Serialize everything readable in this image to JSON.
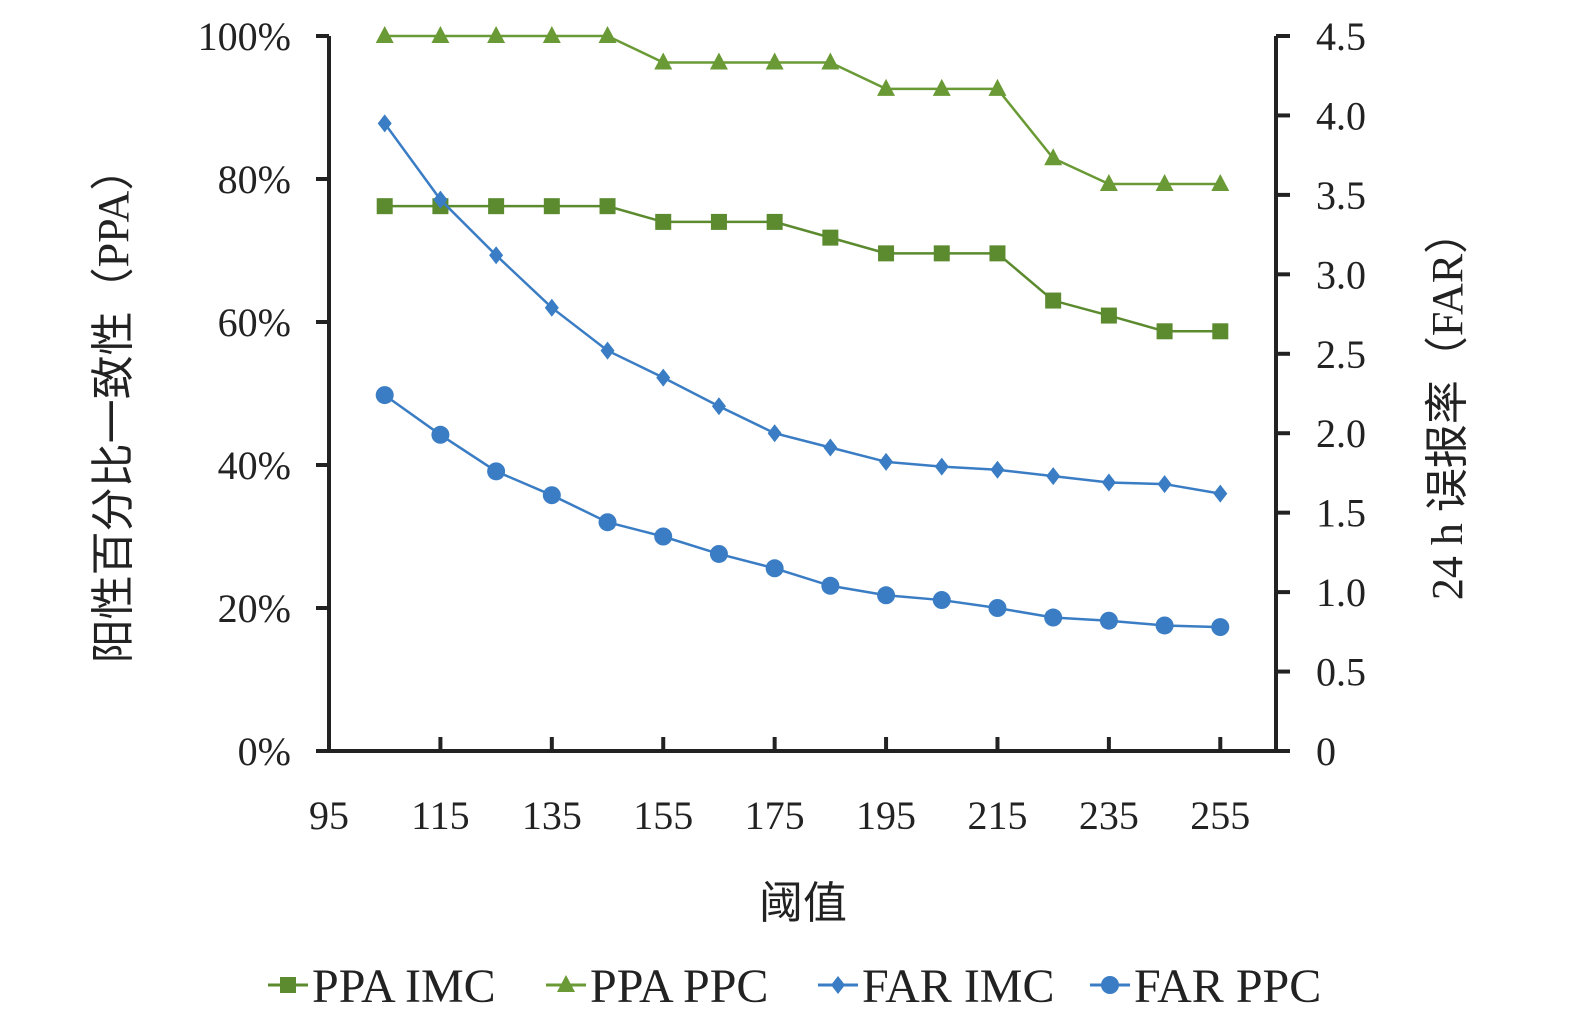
{
  "chart_data": {
    "type": "line",
    "xlabel": "阈值",
    "ylabel_left": "阳性百分比一致性（PPA）",
    "ylabel_right": "24 h 误报率（FAR）",
    "x_ticks": [
      95,
      115,
      135,
      155,
      175,
      195,
      215,
      235,
      255
    ],
    "x_range": [
      95,
      265
    ],
    "y_left_range": [
      0,
      100
    ],
    "y_left_ticks": [
      0,
      20,
      40,
      60,
      80,
      100
    ],
    "y_left_tick_labels": [
      "0%",
      "20%",
      "40%",
      "60%",
      "80%",
      "100%"
    ],
    "y_right_range": [
      0,
      4.5
    ],
    "y_right_ticks": [
      0,
      0.5,
      1.0,
      1.5,
      2.0,
      2.5,
      3.0,
      3.5,
      4.0,
      4.5
    ],
    "y_right_tick_labels": [
      "0",
      "0.5",
      "1.0",
      "1.5",
      "2.0",
      "2.5",
      "3.0",
      "3.5",
      "4.0",
      "4.5"
    ],
    "grid": false,
    "legend_position": "bottom",
    "x": [
      105,
      115,
      125,
      135,
      145,
      155,
      165,
      175,
      185,
      195,
      205,
      215,
      225,
      235,
      245,
      255
    ],
    "series": [
      {
        "name": "PPA IMC",
        "axis": "left",
        "marker": "square",
        "color": "#5b8a2f",
        "values": [
          76.2,
          76.2,
          76.2,
          76.2,
          76.2,
          74.0,
          74.0,
          74.0,
          71.8,
          69.6,
          69.6,
          69.6,
          63.0,
          60.9,
          58.7,
          58.7
        ]
      },
      {
        "name": "PPA PPC",
        "axis": "left",
        "marker": "triangle",
        "color": "#6a9a35",
        "values": [
          100,
          100,
          100,
          100,
          100,
          96.3,
          96.3,
          96.3,
          96.3,
          92.6,
          92.6,
          92.6,
          82.9,
          79.3,
          79.3,
          79.3
        ]
      },
      {
        "name": "FAR IMC",
        "axis": "right",
        "marker": "diamond",
        "color": "#3a7dc4",
        "values": [
          3.95,
          3.47,
          3.12,
          2.79,
          2.52,
          2.35,
          2.17,
          2.0,
          1.91,
          1.82,
          1.79,
          1.77,
          1.73,
          1.69,
          1.68,
          1.62
        ]
      },
      {
        "name": "FAR PPC",
        "axis": "right",
        "marker": "circle",
        "color": "#3a7dc4",
        "values": [
          2.24,
          1.99,
          1.76,
          1.61,
          1.44,
          1.35,
          1.24,
          1.15,
          1.04,
          0.98,
          0.95,
          0.9,
          0.84,
          0.82,
          0.79,
          0.78
        ]
      }
    ]
  }
}
